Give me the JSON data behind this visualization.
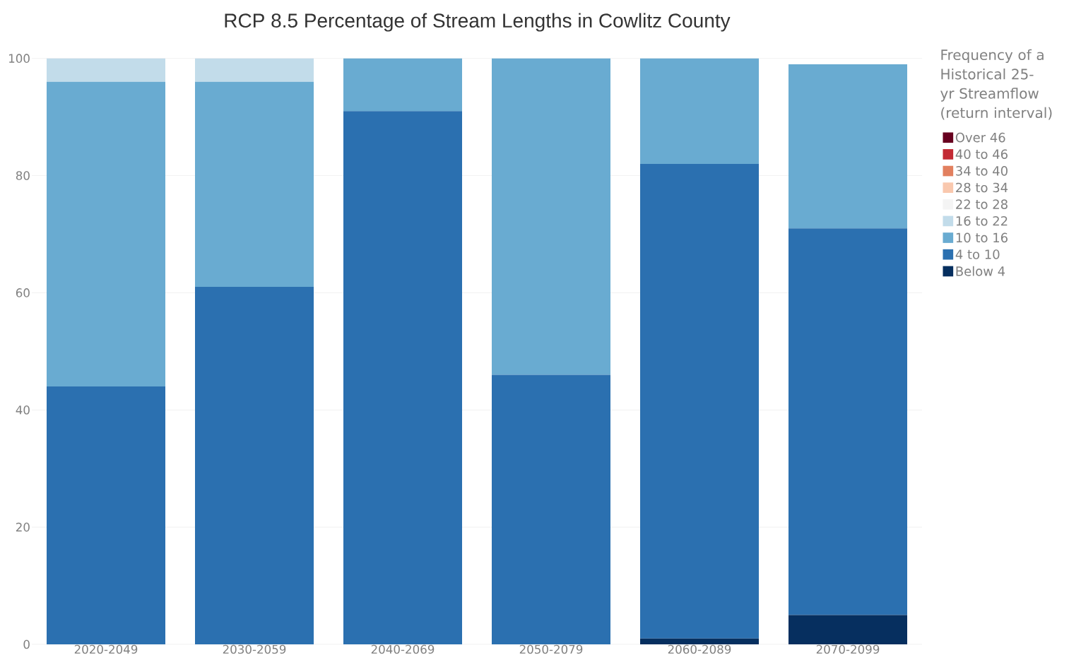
{
  "chart_data": {
    "type": "bar",
    "title": "RCP 8.5 Percentage of Stream Lengths in Cowlitz County",
    "legend_title": "Frequency of a Historical 25-yr Streamflow (return interval)",
    "categories": [
      "2020-2049",
      "2030-2059",
      "2040-2069",
      "2050-2079",
      "2060-2089",
      "2070-2099"
    ],
    "stacked": true,
    "ylim": [
      0,
      100
    ],
    "yticks": [
      0,
      20,
      40,
      60,
      80,
      100
    ],
    "grid": "y",
    "legend": "top right",
    "series": [
      {
        "name": "Below 4",
        "color": "#062f5f",
        "values": [
          0,
          0,
          0,
          0,
          1,
          5
        ]
      },
      {
        "name": "4 to 10",
        "color": "#2b70b0",
        "values": [
          44,
          61,
          91,
          46,
          81,
          66
        ]
      },
      {
        "name": "10 to 16",
        "color": "#69abd1",
        "values": [
          52,
          35,
          9,
          54,
          18,
          28
        ]
      },
      {
        "name": "16 to 22",
        "color": "#c2dcea",
        "values": [
          4,
          4,
          0,
          0,
          0,
          0
        ]
      },
      {
        "name": "22 to 28",
        "color": "#f4f4f4",
        "values": [
          0,
          0,
          0,
          0,
          0,
          0
        ]
      },
      {
        "name": "28 to 34",
        "color": "#f9c8ae",
        "values": [
          0,
          0,
          0,
          0,
          0,
          0
        ]
      },
      {
        "name": "34 to 40",
        "color": "#e2805f",
        "values": [
          0,
          0,
          0,
          0,
          0,
          0
        ]
      },
      {
        "name": "40 to 46",
        "color": "#c32a34",
        "values": [
          0,
          0,
          0,
          0,
          0,
          0
        ]
      },
      {
        "name": "Over 46",
        "color": "#67001f",
        "values": [
          0,
          0,
          0,
          0,
          0,
          0
        ]
      }
    ]
  }
}
